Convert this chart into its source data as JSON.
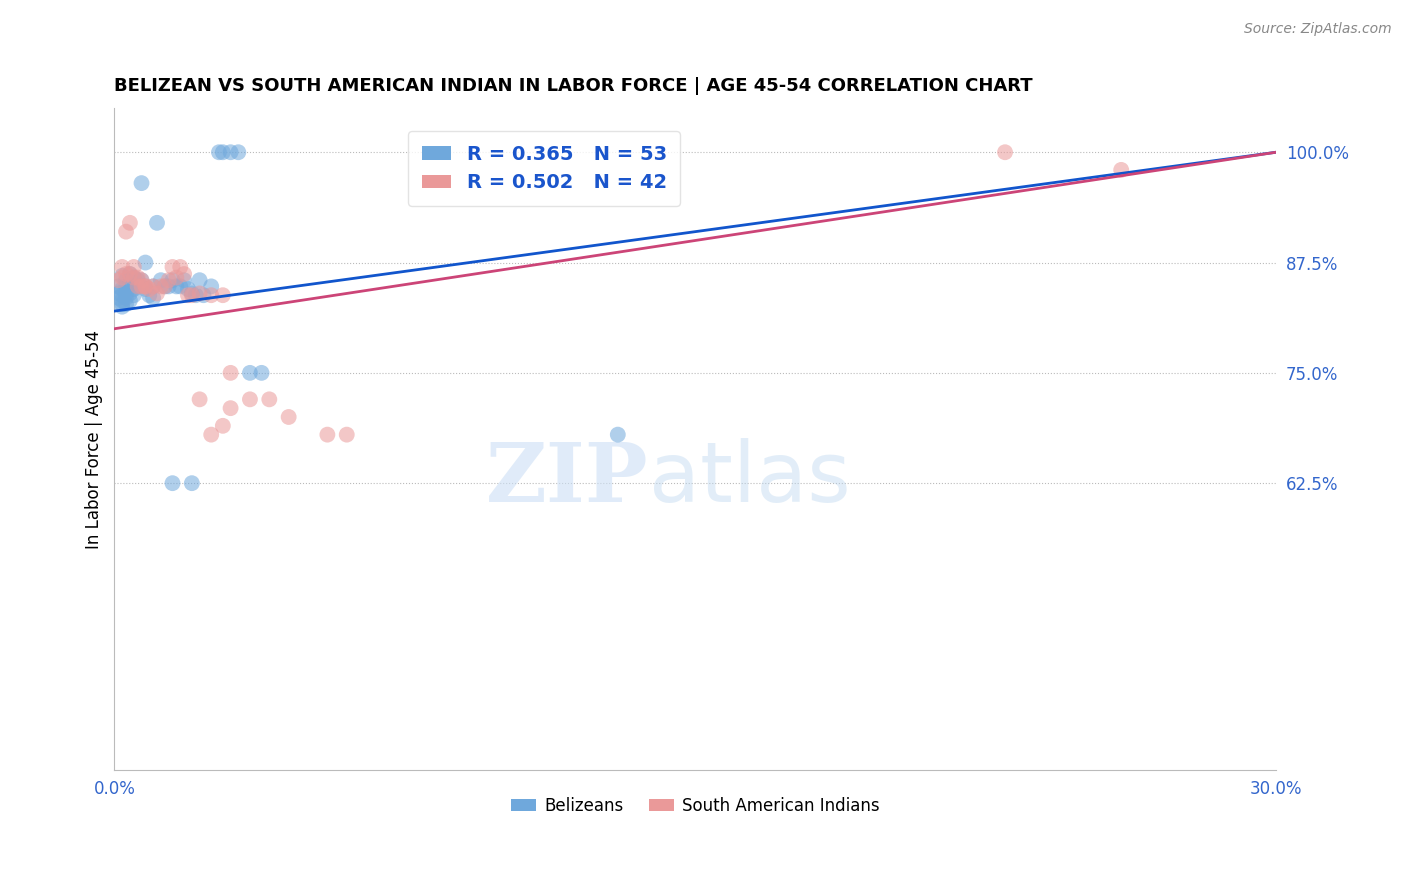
{
  "title": "BELIZEAN VS SOUTH AMERICAN INDIAN IN LABOR FORCE | AGE 45-54 CORRELATION CHART",
  "source": "Source: ZipAtlas.com",
  "ylabel": "In Labor Force | Age 45-54",
  "xlim": [
    0.0,
    0.3
  ],
  "ylim": [
    0.3,
    1.05
  ],
  "yticks": [
    0.625,
    0.75,
    0.875,
    1.0
  ],
  "ytick_labels": [
    "62.5%",
    "75.0%",
    "87.5%",
    "100.0%"
  ],
  "xticks": [
    0.0,
    0.05,
    0.1,
    0.15,
    0.2,
    0.25,
    0.3
  ],
  "xtick_labels": [
    "0.0%",
    "",
    "",
    "",
    "",
    "",
    "30.0%"
  ],
  "blue_color": "#6fa8dc",
  "pink_color": "#ea9999",
  "blue_line_color": "#1155cc",
  "pink_line_color": "#cc4477",
  "legend_r_blue": "R = 0.365",
  "legend_n_blue": "N = 53",
  "legend_r_pink": "R = 0.502",
  "legend_n_pink": "N = 42",
  "watermark_zip": "ZIP",
  "watermark_atlas": "atlas",
  "legend_label_blue": "Belizeans",
  "legend_label_pink": "South American Indians",
  "blue_x": [
    0.001,
    0.001,
    0.001,
    0.002,
    0.002,
    0.002,
    0.002,
    0.002,
    0.002,
    0.003,
    0.003,
    0.003,
    0.003,
    0.003,
    0.004,
    0.004,
    0.004,
    0.004,
    0.005,
    0.005,
    0.005,
    0.006,
    0.006,
    0.007,
    0.007,
    0.008,
    0.008,
    0.009,
    0.01,
    0.01,
    0.011,
    0.012,
    0.013,
    0.014,
    0.015,
    0.016,
    0.017,
    0.018,
    0.019,
    0.02,
    0.021,
    0.022,
    0.023,
    0.025,
    0.027,
    0.028,
    0.03,
    0.032,
    0.035,
    0.038,
    0.015,
    0.02,
    0.13
  ],
  "blue_y": [
    0.84,
    0.848,
    0.835,
    0.86,
    0.845,
    0.838,
    0.832,
    0.828,
    0.825,
    0.855,
    0.848,
    0.84,
    0.835,
    0.828,
    0.862,
    0.85,
    0.84,
    0.832,
    0.858,
    0.845,
    0.838,
    0.855,
    0.848,
    0.965,
    0.855,
    0.875,
    0.845,
    0.838,
    0.848,
    0.835,
    0.92,
    0.855,
    0.848,
    0.848,
    0.855,
    0.848,
    0.848,
    0.855,
    0.845,
    0.84,
    0.838,
    0.855,
    0.838,
    0.848,
    1.0,
    1.0,
    1.0,
    1.0,
    0.75,
    0.75,
    0.625,
    0.625,
    0.68
  ],
  "pink_x": [
    0.001,
    0.002,
    0.002,
    0.003,
    0.003,
    0.004,
    0.004,
    0.005,
    0.005,
    0.006,
    0.006,
    0.007,
    0.007,
    0.008,
    0.008,
    0.009,
    0.01,
    0.011,
    0.012,
    0.013,
    0.014,
    0.015,
    0.016,
    0.017,
    0.018,
    0.019,
    0.02,
    0.022,
    0.025,
    0.028,
    0.03,
    0.035,
    0.04,
    0.045,
    0.055,
    0.06,
    0.022,
    0.025,
    0.028,
    0.03,
    0.23,
    0.26
  ],
  "pink_y": [
    0.855,
    0.87,
    0.858,
    0.91,
    0.862,
    0.92,
    0.862,
    0.87,
    0.858,
    0.858,
    0.848,
    0.855,
    0.848,
    0.848,
    0.848,
    0.845,
    0.848,
    0.84,
    0.848,
    0.848,
    0.855,
    0.87,
    0.858,
    0.87,
    0.862,
    0.838,
    0.838,
    0.84,
    0.838,
    0.838,
    0.75,
    0.72,
    0.72,
    0.7,
    0.68,
    0.68,
    0.72,
    0.68,
    0.69,
    0.71,
    1.0,
    0.98
  ],
  "blue_line_x0": 0.0,
  "blue_line_y0": 0.82,
  "blue_line_x1": 0.3,
  "blue_line_y1": 1.0,
  "pink_line_x0": 0.0,
  "pink_line_y0": 0.8,
  "pink_line_x1": 0.3,
  "pink_line_y1": 1.0
}
